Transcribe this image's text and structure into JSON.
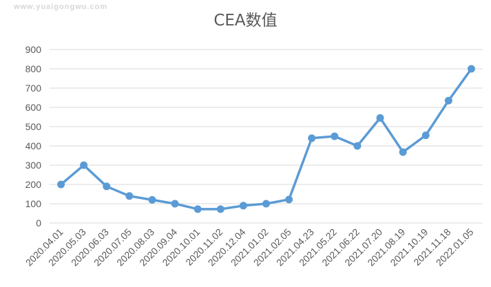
{
  "watermark": "www.yuaigongwu.com",
  "chart_data": {
    "type": "line",
    "title": "CEA数值",
    "xlabel": "",
    "ylabel": "",
    "ylim": [
      0,
      900
    ],
    "yticks": [
      0,
      100,
      200,
      300,
      400,
      500,
      600,
      700,
      800,
      900
    ],
    "grid": true,
    "legend": "none",
    "categories": [
      "2020.04.01",
      "2020.05.03",
      "2020.06.03",
      "2020.07.05",
      "2020.08.03",
      "2020.09.04",
      "2020.10.01",
      "2020.11.02",
      "2020.12.04",
      "2021.01.02",
      "2021.02.05",
      "2021.04.23",
      "2021.05.22",
      "2021.06.22",
      "2021.07.20",
      "2021.08.19",
      "2021.10.19",
      "2021.11.18",
      "2022.01.05"
    ],
    "series": [
      {
        "color": "#5b9bd5",
        "values": [
          200,
          300,
          190,
          140,
          120,
          100,
          72,
          72,
          90,
          100,
          122,
          440,
          450,
          400,
          545,
          368,
          455,
          635,
          800
        ]
      }
    ]
  },
  "colors": {
    "line": "#5b9bd5",
    "grid": "#d9d9d9",
    "text": "#595959"
  }
}
